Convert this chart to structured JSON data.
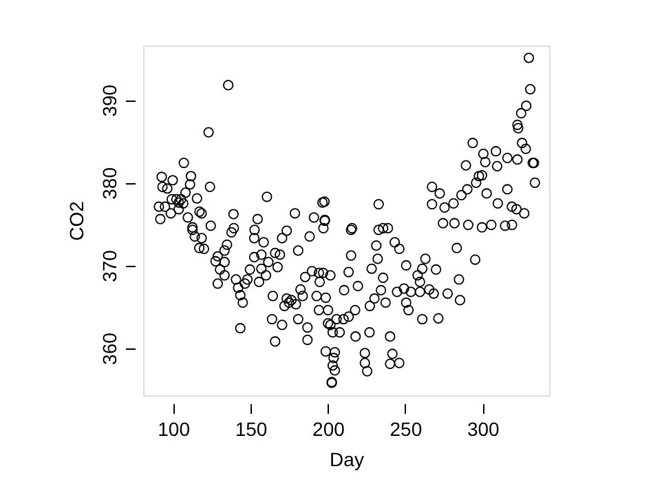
{
  "chart_data": {
    "type": "scatter",
    "xlabel": "Day",
    "ylabel": "CO2",
    "marker": "circle",
    "xlim": [
      80.6,
      343
    ],
    "ylim": [
      354.3,
      396.6
    ],
    "xticks": [
      100,
      150,
      200,
      250,
      300
    ],
    "yticks": [
      360,
      370,
      380,
      390
    ],
    "series": [
      {
        "color": "#000000",
        "x": [
          135.6,
          122.9,
          106.9,
          160.6,
          196.5,
          178.7,
          191,
          198,
          139,
          123.8,
          329.9,
          330.8,
          328.2,
          324.9,
          322.5,
          323,
          325.5,
          327.9,
          332.4,
          333.2,
          333.8,
          293.6,
          300.5,
          308.6,
          309.4,
          301.7,
          289.2,
          316,
          322.5,
          297.6,
          299.6,
          295.8,
          290.1,
          286.3,
          302.6,
          316,
          267.3,
          272.3,
          267.3,
          275.4,
          281.2,
          232.8,
          197.8,
          309.8,
          318.9,
          321.9,
          326.9,
          215.6,
          198,
          274.4,
          281.8,
          290.7,
          299.6,
          305.6,
          314.5,
          319,
          238.8,
          235.7,
          215,
          232.8,
          231.3,
          243.2,
          246.2,
          215,
          232.2,
          283.3,
          295.2,
          250.6,
          261,
          263,
          269.9,
          228.3,
          213.4,
          201.6,
          258,
          259.5,
          235.7,
          219.4,
          210.5,
          284.7,
          234.3,
          244.7,
          249.2,
          253.6,
          259.5,
          265.5,
          268.4,
          277.4,
          285.4,
          217.6,
          227.1,
          230.1,
          237.3,
          250.6,
          252.1,
          200.1,
          205.6,
          210.1,
          213.4,
          198.6,
          207.6,
          217.9,
          226.9,
          261,
          271.4,
          240.2,
          246.1,
          240.2,
          223.9,
          223.9,
          225.4,
          241.7,
          204.5,
          203.1,
          202.5,
          112.5,
          114,
          118.4,
          124.3,
          116.9,
          119.9,
          127.4,
          128.8,
          133.2,
          134.8,
          130.3,
          128.8,
          133.2,
          133.2,
          140.6,
          142,
          143.4,
          145,
          143.4,
          146.4,
          148,
          152.4,
          152.4,
          149.6,
          155.5,
          157,
          158.5,
          157,
          161.5,
          160,
          165.9,
          167.5,
          169,
          164.4,
          163.9,
          165.9,
          170.4,
          171.9,
          173.4,
          174.9,
          176.4,
          179.3,
          180.8,
          186.8,
          186.8,
          185.3,
          182.3,
          183.7,
          189.7,
          194.2,
          194.7,
          196.9,
          192.7,
          194.2,
          198.6,
          200.1,
          201.6,
          203.1,
          203.7,
          204.5,
          202.5,
          180.8,
          170.4,
          173.4,
          188.2,
          92.6,
          93.1,
          96.2,
          99.7,
          90.8,
          91.7,
          94.7,
          98.5,
          99.1,
          102.1,
          103.6,
          105.1,
          106.5,
          108,
          109.5,
          111.5,
          110.9,
          115.4,
          103.6,
          117,
          118.4,
          112.5,
          139.2,
          137.7,
          152.6,
          154.6,
          197.1
        ],
        "values": [
          391.8,
          386.1,
          382.4,
          378.3,
          377.6,
          376.3,
          375.8,
          375.4,
          376.2,
          379.5,
          395.1,
          391.3,
          389.3,
          388.4,
          387,
          386.6,
          384.8,
          384.1,
          382.4,
          382.4,
          380,
          384.8,
          383.5,
          383.8,
          382,
          382.5,
          382.1,
          383,
          382.8,
          380.8,
          380.9,
          380,
          379.2,
          378.5,
          378.7,
          379.2,
          379.5,
          378.7,
          377.4,
          377,
          377.5,
          377.4,
          377.7,
          377.5,
          377.1,
          376.8,
          376.3,
          374.5,
          375.5,
          375.1,
          375.1,
          374.9,
          374.6,
          374.9,
          374.8,
          374.9,
          374.5,
          374.5,
          374.3,
          374.3,
          372.4,
          372.8,
          372,
          371.2,
          370.8,
          372.1,
          370.7,
          370,
          369.6,
          370.8,
          369.5,
          369.6,
          369.2,
          368.8,
          368.8,
          368,
          368.5,
          367.5,
          367,
          368.3,
          367,
          366.8,
          367.2,
          366.8,
          366.8,
          367.1,
          366.6,
          366.6,
          365.8,
          364.6,
          365.1,
          366,
          365.5,
          365.5,
          364.6,
          363,
          363.5,
          363.5,
          363.8,
          359.6,
          361.9,
          361.4,
          361.9,
          363.5,
          363.6,
          361.4,
          358.2,
          358.1,
          359.4,
          358.2,
          357.2,
          359.3,
          359.5,
          357.9,
          355.9,
          374.3,
          373.5,
          373.3,
          374.8,
          372.1,
          372,
          370.5,
          371.1,
          371.8,
          372.5,
          369.5,
          367.8,
          368.8,
          370.4,
          368.3,
          367.3,
          366.4,
          365.5,
          362.4,
          367.8,
          368.3,
          373.3,
          371,
          369.5,
          368,
          371.3,
          372.8,
          369.6,
          370.4,
          368.8,
          371.5,
          369.8,
          371.3,
          366.3,
          363.5,
          360.8,
          362.8,
          365.1,
          366,
          365.5,
          365.8,
          365.3,
          363.5,
          362.5,
          361,
          368.6,
          367.1,
          366.3,
          369.3,
          369.1,
          368,
          369.1,
          366.3,
          364.6,
          366.1,
          364.6,
          362.8,
          361.9,
          358.8,
          357.3,
          355.8,
          371.8,
          373.3,
          374.2,
          373.5,
          380.7,
          379.5,
          379.3,
          380.3,
          377.1,
          375.6,
          377.1,
          376.3,
          378,
          378,
          377.6,
          378,
          377.5,
          378.8,
          375.8,
          380.8,
          379.8,
          378.1,
          376.8,
          376.5,
          376.3,
          374.6,
          374.5,
          374,
          374.3,
          375.6,
          374.5
        ]
      }
    ]
  }
}
